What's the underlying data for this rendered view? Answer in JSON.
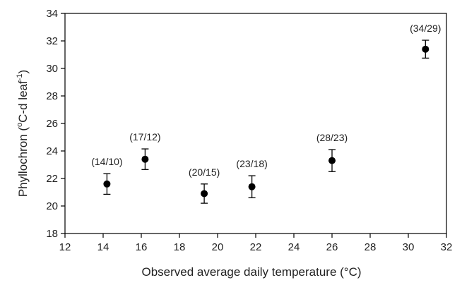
{
  "chart_data": {
    "type": "scatter",
    "title": "",
    "xlabel": "Observed average daily temperature (°C)",
    "ylabel": {
      "main": "Phyllochron (",
      "sup1": "o",
      "mid": "C-d leaf",
      "sup2": "-1",
      "end": ")"
    },
    "xlim": [
      12,
      32
    ],
    "ylim": [
      18,
      34
    ],
    "xticks": [
      12,
      14,
      16,
      18,
      20,
      22,
      24,
      26,
      28,
      30,
      32
    ],
    "yticks": [
      18,
      20,
      22,
      24,
      26,
      28,
      30,
      32,
      34
    ],
    "grid": false,
    "legend": "none",
    "points": [
      {
        "x": 14.2,
        "y": 21.6,
        "err": 0.75,
        "label": "(14/10)"
      },
      {
        "x": 16.2,
        "y": 23.4,
        "err": 0.75,
        "label": "(17/12)"
      },
      {
        "x": 19.3,
        "y": 20.9,
        "err": 0.7,
        "label": "(20/15)"
      },
      {
        "x": 21.8,
        "y": 21.4,
        "err": 0.8,
        "label": "(23/18)"
      },
      {
        "x": 26.0,
        "y": 23.3,
        "err": 0.8,
        "label": "(28/23)"
      },
      {
        "x": 30.9,
        "y": 31.4,
        "err": 0.65,
        "label": "(34/29)"
      }
    ]
  }
}
